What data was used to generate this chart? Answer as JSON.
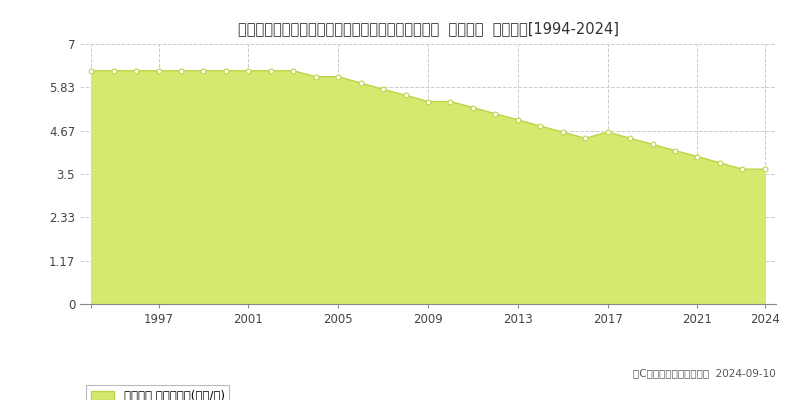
{
  "title": "宮崎県西諸県郡高原町大字西麓字上大迫３３３番４  地価公示  地価推移[1994-2024]",
  "years": [
    1994,
    1995,
    1996,
    1997,
    1998,
    1999,
    2000,
    2001,
    2002,
    2003,
    2004,
    2005,
    2006,
    2007,
    2008,
    2009,
    2010,
    2011,
    2012,
    2013,
    2014,
    2015,
    2016,
    2017,
    2018,
    2019,
    2020,
    2021,
    2022,
    2023,
    2024
  ],
  "values": [
    6.28,
    6.28,
    6.28,
    6.28,
    6.28,
    6.28,
    6.28,
    6.28,
    6.28,
    6.28,
    6.12,
    6.12,
    5.95,
    5.78,
    5.62,
    5.45,
    5.45,
    5.29,
    5.12,
    4.96,
    4.79,
    4.63,
    4.46,
    4.63,
    4.46,
    4.3,
    4.13,
    3.97,
    3.8,
    3.63,
    3.63
  ],
  "yticks": [
    0,
    1.17,
    2.33,
    3.5,
    4.67,
    5.83,
    7
  ],
  "ytick_labels": [
    "0",
    "1.17",
    "2.33",
    "3.5",
    "4.67",
    "5.83",
    "7"
  ],
  "xticks": [
    1994,
    1997,
    2001,
    2005,
    2009,
    2013,
    2017,
    2021,
    2024
  ],
  "xtick_labels": [
    "",
    "1997",
    "2001",
    "2005",
    "2009",
    "2013",
    "2017",
    "2021",
    "2024"
  ],
  "ylim": [
    0,
    7
  ],
  "xlim_min": 1993.5,
  "xlim_max": 2024.5,
  "fill_color": "#d4e96e",
  "line_color": "#bdd44a",
  "marker_facecolor": "#ffffff",
  "marker_edgecolor": "#bdd44a",
  "background_color": "#ffffff",
  "plot_bg_color": "#ffffff",
  "grid_color": "#cccccc",
  "title_fontsize": 10.5,
  "legend_label": "地価公示 平均坪単価(万円/坪)",
  "copyright_text": "（C）土地価格ドットコム  2024-09-10"
}
